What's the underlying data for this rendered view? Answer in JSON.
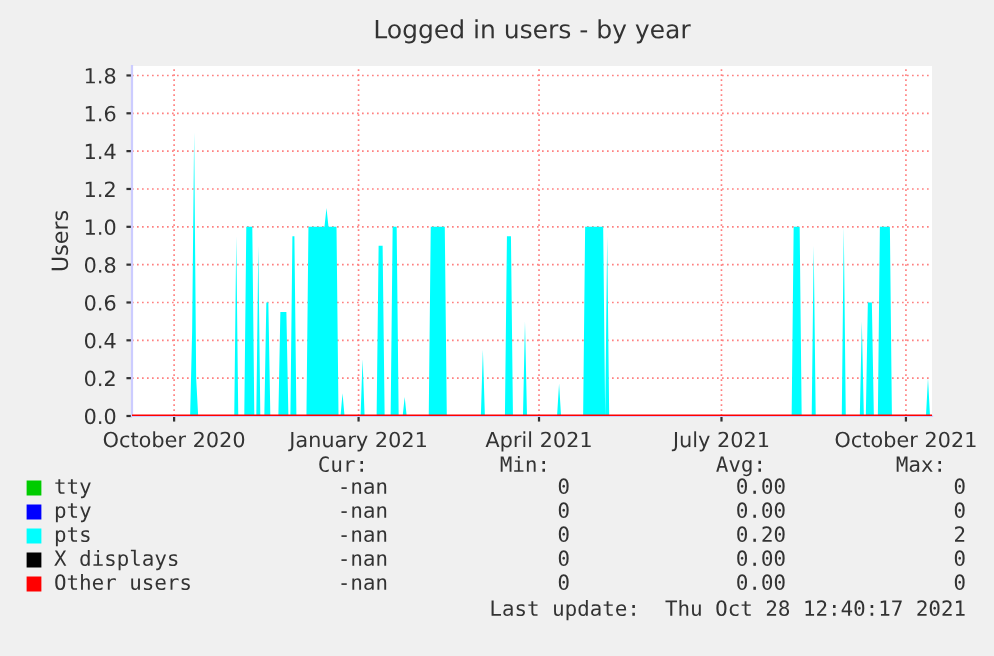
{
  "chart_data": {
    "type": "area",
    "title": "Logged in users - by year",
    "ylabel": "Users",
    "xlim": [
      "2020-09-10",
      "2021-10-14"
    ],
    "xticks": [
      {
        "value": "2020-10-01",
        "label": "October 2020"
      },
      {
        "value": "2021-01-01",
        "label": "January 2021"
      },
      {
        "value": "2021-04-01",
        "label": "April 2021"
      },
      {
        "value": "2021-07-01",
        "label": "July 2021"
      },
      {
        "value": "2021-10-01",
        "label": "October 2021"
      }
    ],
    "ylim": [
      0,
      1.85
    ],
    "yticks": [
      {
        "value": 0,
        "label": "0.0"
      },
      {
        "value": 0.2,
        "label": "0.2"
      },
      {
        "value": 0.4,
        "label": "0.4"
      },
      {
        "value": 0.6,
        "label": "0.6"
      },
      {
        "value": 0.8,
        "label": "0.8"
      },
      {
        "value": 1.0,
        "label": "1.0"
      },
      {
        "value": 1.2,
        "label": "1.2"
      },
      {
        "value": 1.4,
        "label": "1.4"
      },
      {
        "value": 1.6,
        "label": "1.6"
      },
      {
        "value": 1.8,
        "label": "1.8"
      }
    ],
    "grid": true,
    "legend": "bottom",
    "series": [
      {
        "name": "tty",
        "color": "#00cc00"
      },
      {
        "name": "pty",
        "color": "#0000ff"
      },
      {
        "name": "pts",
        "color": "#00ffff",
        "x": [
          "2020-10-09",
          "2020-10-10",
          "2020-10-11",
          "2020-10-12",
          "2020-10-13",
          "2020-10-31",
          "2020-11-01",
          "2020-11-02",
          "2020-11-05",
          "2020-11-06",
          "2020-11-09",
          "2020-11-10",
          "2020-11-11",
          "2020-11-12",
          "2020-11-13",
          "2020-11-15",
          "2020-11-16",
          "2020-11-17",
          "2020-11-18",
          "2020-11-22",
          "2020-11-23",
          "2020-11-26",
          "2020-11-27",
          "2020-11-28",
          "2020-11-29",
          "2020-11-30",
          "2020-12-01",
          "2020-12-06",
          "2020-12-07",
          "2020-12-15",
          "2020-12-16",
          "2020-12-17",
          "2020-12-21",
          "2020-12-22",
          "2020-12-23",
          "2020-12-24",
          "2020-12-25",
          "2021-01-02",
          "2021-01-03",
          "2021-01-04",
          "2021-01-10",
          "2021-01-11",
          "2021-01-13",
          "2021-01-14",
          "2021-01-17",
          "2021-01-18",
          "2021-01-20",
          "2021-01-21",
          "2021-01-23",
          "2021-01-24",
          "2021-01-25",
          "2021-02-05",
          "2021-02-06",
          "2021-02-13",
          "2021-02-14",
          "2021-03-03",
          "2021-03-04",
          "2021-03-05",
          "2021-03-15",
          "2021-03-16",
          "2021-03-18",
          "2021-03-19",
          "2021-03-24",
          "2021-03-25",
          "2021-03-26",
          "2021-04-10",
          "2021-04-11",
          "2021-04-12",
          "2021-04-23",
          "2021-04-24",
          "2021-05-03",
          "2021-05-04",
          "2021-05-05",
          "2021-05-06",
          "2021-08-05",
          "2021-08-06",
          "2021-08-09",
          "2021-08-10",
          "2021-08-15",
          "2021-08-16",
          "2021-08-17",
          "2021-08-30",
          "2021-08-31",
          "2021-09-01",
          "2021-09-08",
          "2021-09-09",
          "2021-09-10",
          "2021-09-11",
          "2021-09-12",
          "2021-09-14",
          "2021-09-15",
          "2021-09-17",
          "2021-09-18",
          "2021-09-23",
          "2021-09-24",
          "2021-10-11",
          "2021-10-12",
          "2021-10-13"
        ],
        "values": [
          0,
          0.45,
          1.5,
          0.2,
          0,
          0,
          0.95,
          0,
          0,
          1.0,
          1.0,
          0,
          0,
          0.9,
          0,
          0,
          0.6,
          0.6,
          0,
          0,
          0.55,
          0.55,
          0,
          0,
          0.95,
          0.95,
          0,
          0,
          1.0,
          1.0,
          1.1,
          1.0,
          1.0,
          0,
          0,
          0.12,
          0,
          0,
          0.3,
          0,
          0,
          0.9,
          0.9,
          0,
          0,
          1.0,
          1.0,
          0,
          0,
          0.1,
          0,
          0,
          1.0,
          1.0,
          0,
          0,
          0.35,
          0,
          0,
          0.95,
          0.95,
          0,
          0,
          0.5,
          0,
          0,
          0.17,
          0,
          0,
          1.0,
          1.0,
          0,
          0.95,
          0,
          0,
          1.0,
          1.0,
          0,
          0,
          0.9,
          0,
          0,
          1.0,
          0,
          0,
          0.5,
          0,
          0,
          0.6,
          0.6,
          0,
          0,
          1.0,
          1.0,
          0,
          0,
          0.2,
          0
        ]
      },
      {
        "name": "X displays",
        "color": "#000000"
      },
      {
        "name": "Other users",
        "color": "#ff0000",
        "type": "line",
        "x": [
          "2020-09-10",
          "2021-10-14"
        ],
        "values": [
          0,
          0
        ]
      }
    ],
    "annotations": [
      "Cur:",
      "Min:",
      "Avg:",
      "Max:",
      "-nan",
      "0",
      "0.00",
      "0",
      "-nan",
      "0",
      "0.00",
      "0",
      "-nan",
      "0",
      "0.20",
      "2",
      "-nan",
      "0",
      "0.00",
      "0",
      "-nan",
      "0",
      "0.00",
      "0",
      "Last update:  Thu Oct 28 12:40:17 2021"
    ]
  }
}
